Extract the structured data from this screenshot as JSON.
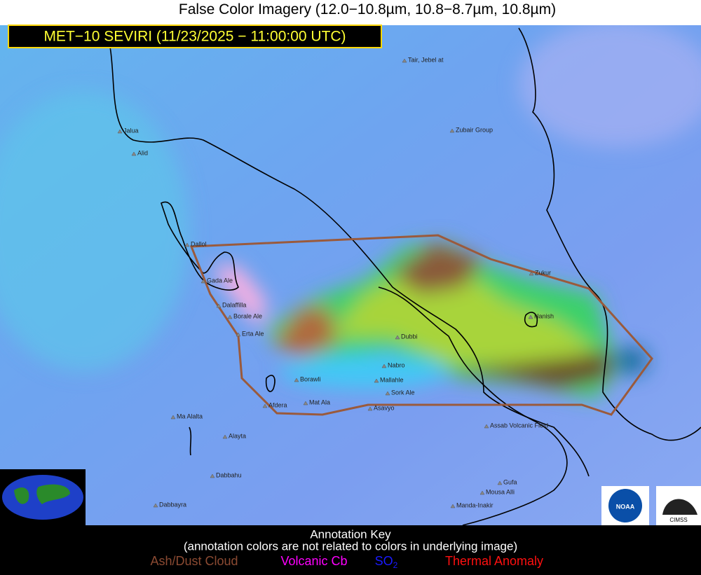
{
  "title": "False Color Imagery (12.0−10.8µm, 10.8−8.7µm, 10.8µm)",
  "subtitle": "MET−10 SEVIRI (11/23/2025 − 11:00:00 UTC)",
  "volcanoes": [
    "Tair, Jebel at",
    "Zubair Group",
    "Jalua",
    "Alid",
    "Dallol",
    "Gada Ale",
    "Dalaffilla",
    "Borale Ale",
    "Erta Ale",
    "Dubbi",
    "Nabro",
    "Mallahle",
    "Sork Ale",
    "Borawli",
    "Afdera",
    "Mat Ala",
    "Asavyo",
    "Ma Alalta",
    "Alayta",
    "Dabbahu",
    "Dabbayra",
    "Manda-Inakir",
    "Mousa Alli",
    "Gufa",
    "Assab Volcanic Field",
    "Hanish",
    "Zukur"
  ],
  "annotation_key": {
    "title": "Annotation Key",
    "note": "(annotation colors are not related to colors in underlying image)",
    "items": [
      {
        "label": "Ash/Dust Cloud",
        "color": "#8b4a32"
      },
      {
        "label": "Volcanic Cb",
        "color": "#ff00ff"
      },
      {
        "label": "SO",
        "subscript": "2",
        "color": "#1a1aff"
      },
      {
        "label": "Thermal Anomaly",
        "color": "#ff1010"
      }
    ]
  },
  "logos": {
    "noaa": "NOAA",
    "cimss": "CIMSS"
  }
}
